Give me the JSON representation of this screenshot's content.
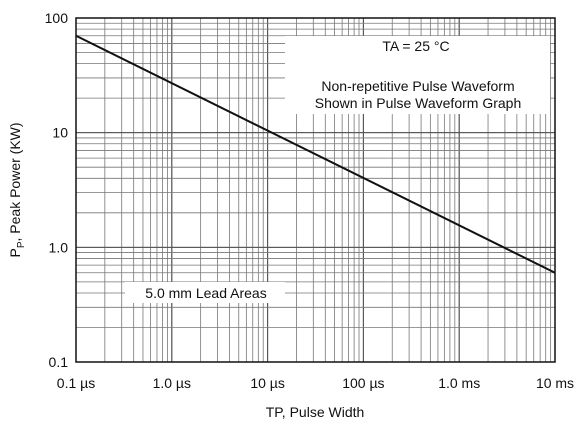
{
  "chart_data": {
    "type": "line",
    "title": "",
    "xlabel": "TP, Pulse Width",
    "ylabel_main": "P",
    "ylabel_sub": "P",
    "ylabel_rest": ", Peak Power (KW)",
    "x_scale": "log",
    "y_scale": "log",
    "x_unit": "seconds",
    "xlim": [
      1e-07,
      0.01
    ],
    "ylim": [
      0.1,
      100
    ],
    "grid": true,
    "x_ticks": [
      {
        "value": 1e-07,
        "label": "0.1 µs"
      },
      {
        "value": 1e-06,
        "label": "1.0 µs"
      },
      {
        "value": 1e-05,
        "label": "10 µs"
      },
      {
        "value": 0.0001,
        "label": "100 µs"
      },
      {
        "value": 0.001,
        "label": "1.0 ms"
      },
      {
        "value": 0.01,
        "label": "10 ms"
      }
    ],
    "y_ticks": [
      {
        "value": 0.1,
        "label": "0.1"
      },
      {
        "value": 1,
        "label": "1.0"
      },
      {
        "value": 10,
        "label": "10"
      },
      {
        "value": 100,
        "label": "100"
      }
    ],
    "series": [
      {
        "name": "",
        "color": "#111111",
        "x": [
          1e-07,
          0.01
        ],
        "y": [
          70,
          0.6
        ]
      }
    ],
    "annotations": {
      "ta": "TA = 25 °C",
      "waveform_line1": "Non-repetitive Pulse Waveform",
      "waveform_line2": "Shown in Pulse Waveform Graph",
      "lead": "5.0 mm Lead Areas"
    }
  }
}
